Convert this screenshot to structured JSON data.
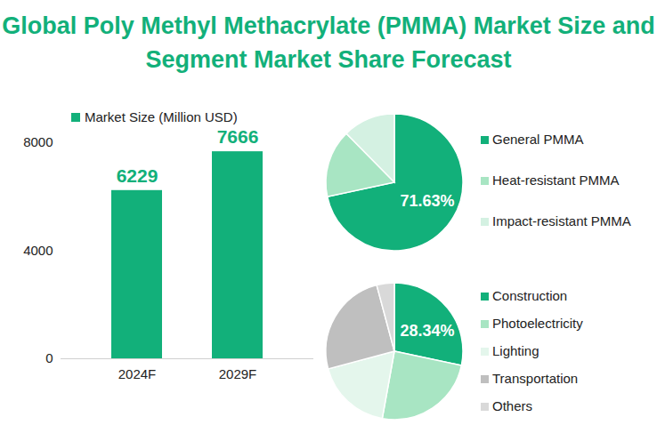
{
  "title": "Global Poly Methyl Methacrylate (PMMA) Market Size and Segment Market Share Forecast",
  "chart_data": [
    {
      "type": "bar",
      "categories": [
        "2024F",
        "2029F"
      ],
      "series": [
        {
          "name": "Market Size (Million USD)",
          "color": "#12b07a",
          "values": [
            6229,
            7666
          ]
        }
      ],
      "ylim": [
        0,
        8000
      ],
      "yticks": [
        0,
        4000,
        8000
      ],
      "data_labels": true,
      "legend": "top"
    },
    {
      "type": "pie",
      "categories": [
        "General PMMA",
        "Heat-resistant PMMA",
        "Impact-resistant PMMA"
      ],
      "values": [
        71.63,
        16.0,
        12.37
      ],
      "value_labels": [
        "71.63%",
        null,
        null
      ],
      "colors": [
        "#12b07a",
        "#a8e5c3",
        "#d4f1e2"
      ],
      "legend": "right"
    },
    {
      "type": "pie",
      "categories": [
        "Construction",
        "Photoelectricity",
        "Lighting",
        "Transportation",
        "Others"
      ],
      "values": [
        28.34,
        24.5,
        18.0,
        25.0,
        4.16
      ],
      "value_labels": [
        "28.34%",
        null,
        null,
        null,
        null
      ],
      "colors": [
        "#12b07a",
        "#a8e5c3",
        "#e4f6ec",
        "#bfbfbf",
        "#d9d9d9"
      ],
      "legend": "right"
    }
  ]
}
